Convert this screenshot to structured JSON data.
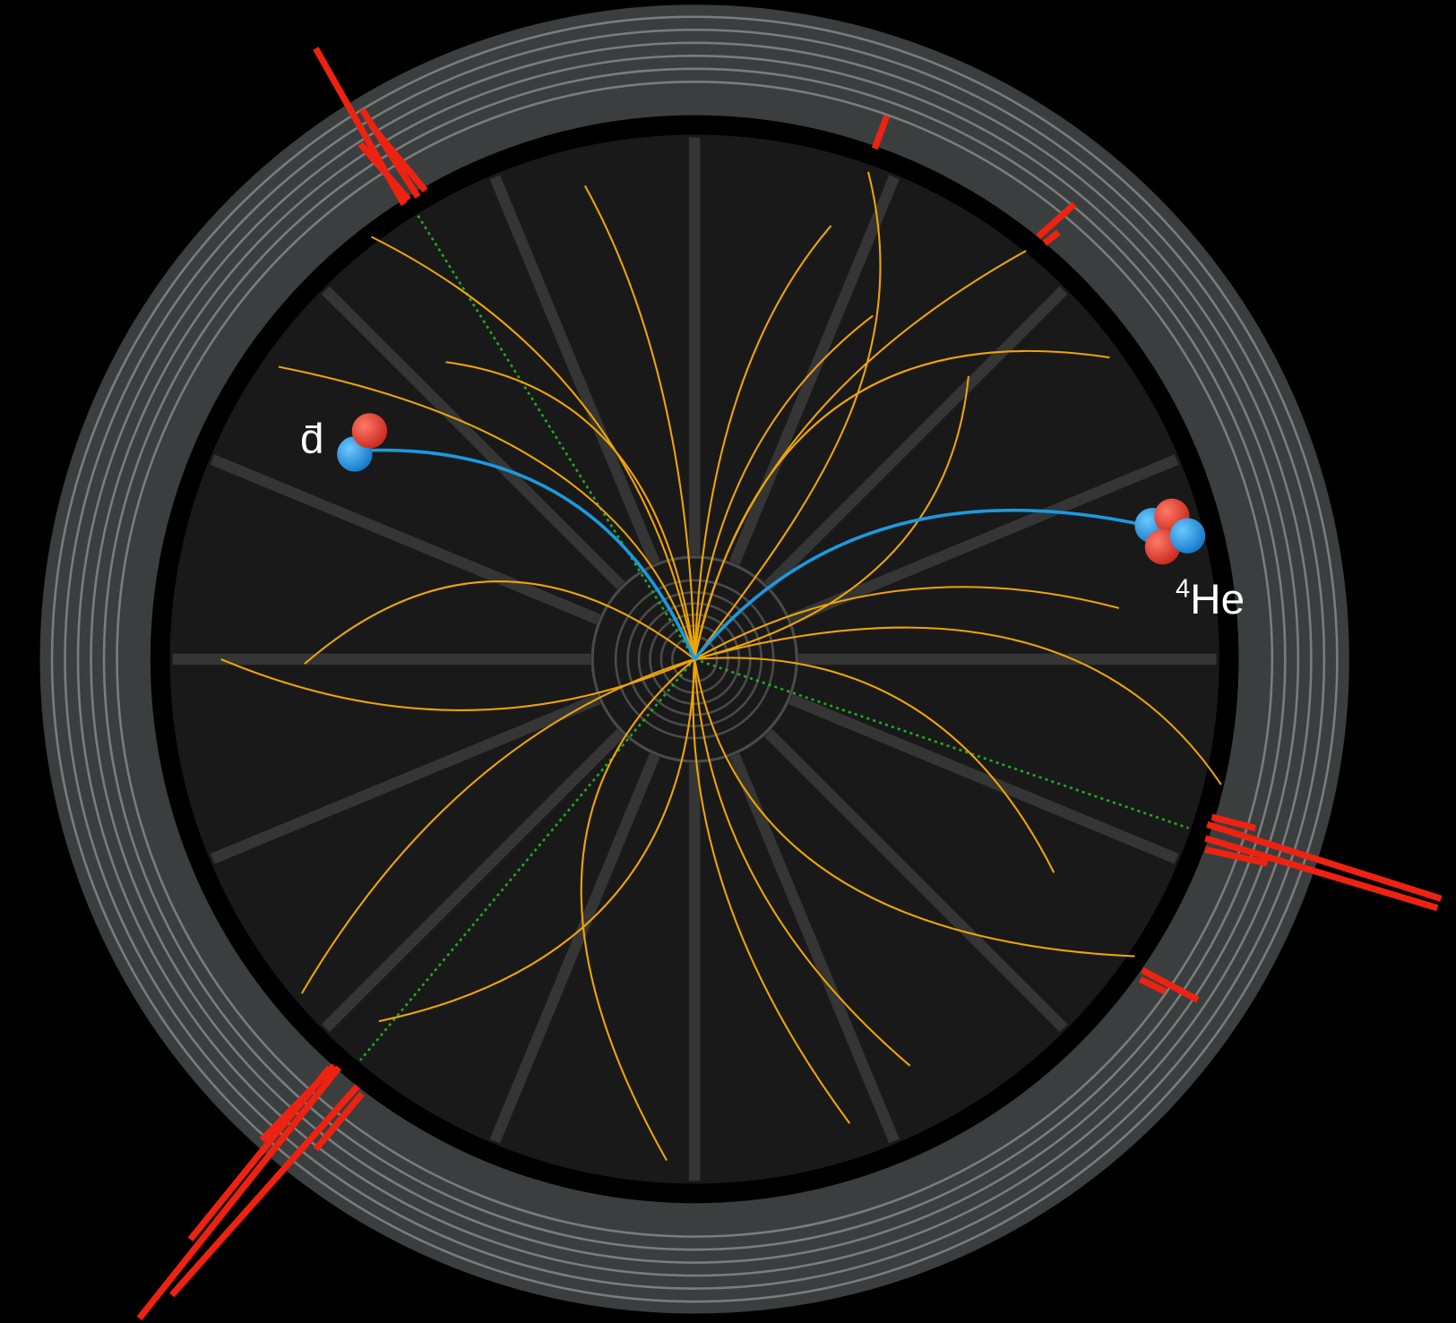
{
  "labels": {
    "antideuteron": "d̄",
    "helium": {
      "mass_number": "4",
      "symbol": "He"
    }
  }
}
